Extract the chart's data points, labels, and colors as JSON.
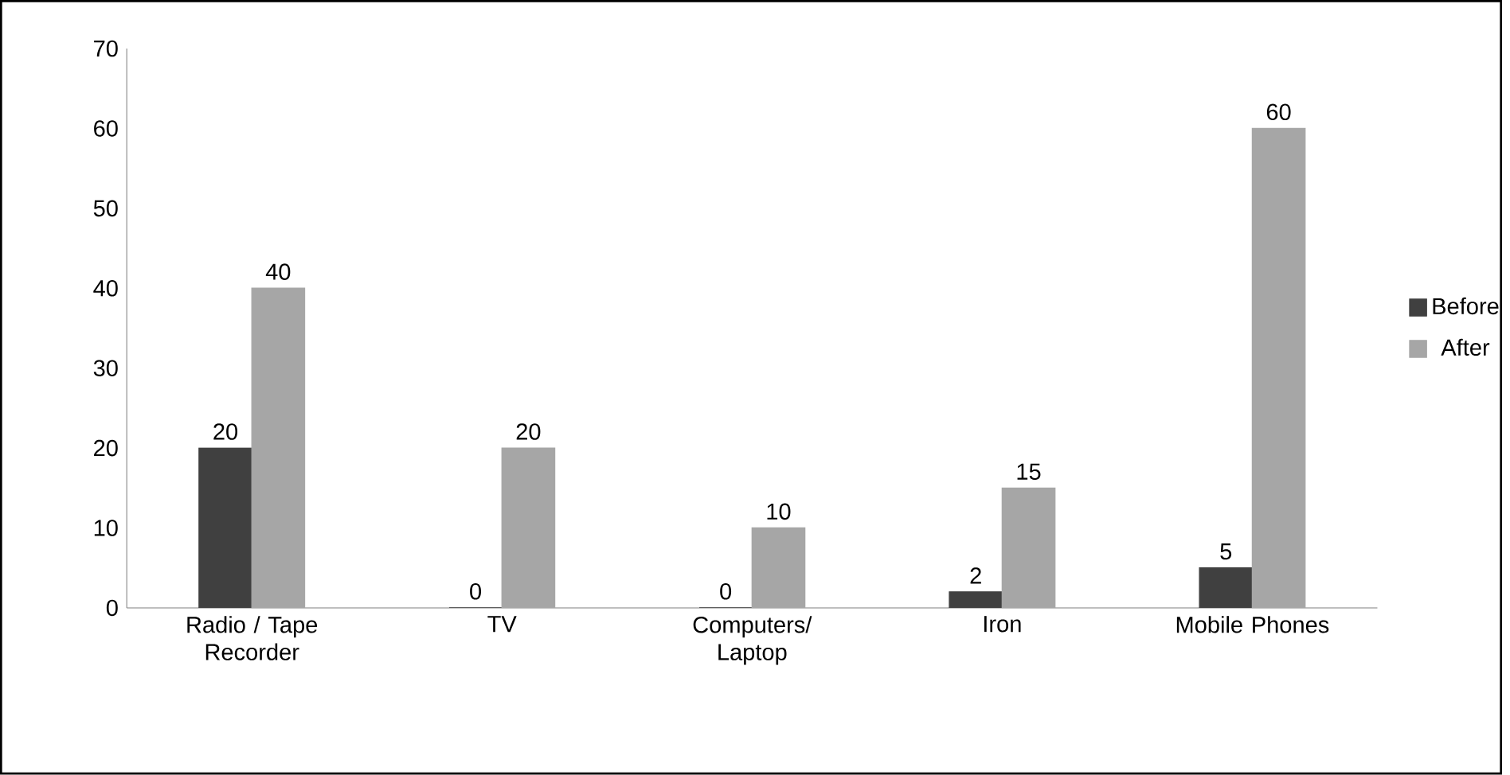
{
  "chart_data": {
    "type": "bar",
    "categories": [
      "Radio / Tape Recorder",
      "TV",
      "Computers/ Laptop",
      "Iron",
      "Mobile Phones"
    ],
    "series": [
      {
        "name": "Before",
        "color": "#404040",
        "values": [
          20,
          0,
          0,
          2,
          5
        ]
      },
      {
        "name": "After",
        "color": "#a6a6a6",
        "values": [
          40,
          20,
          10,
          15,
          60
        ]
      }
    ],
    "ylim": [
      0,
      70
    ],
    "yticks": [
      0,
      10,
      20,
      30,
      40,
      50,
      60,
      70
    ],
    "data_labels": true,
    "legend": "right"
  }
}
